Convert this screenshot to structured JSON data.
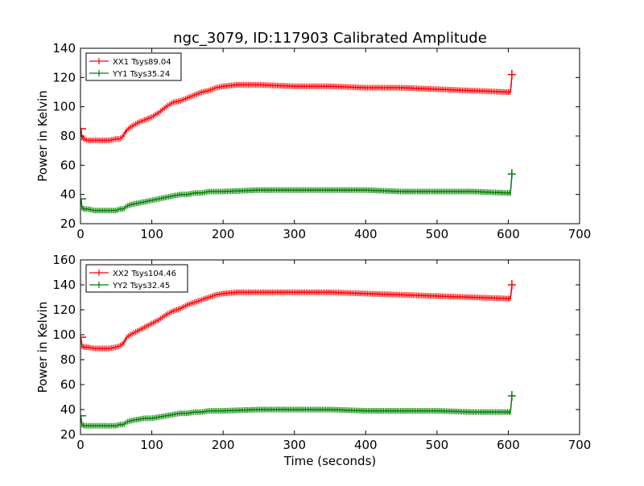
{
  "title": "ngc_3079, ID:117903 Calibrated Amplitude",
  "xlabel": "Time (seconds)",
  "colors": {
    "xx": "#ff0000",
    "yy": "#008000"
  },
  "chart_data": [
    {
      "type": "line",
      "ylabel": "Power in Kelvin",
      "xlim": [
        0,
        700
      ],
      "ylim": [
        20,
        140
      ],
      "xticks": [
        0,
        100,
        200,
        300,
        400,
        500,
        600,
        700
      ],
      "yticks": [
        20,
        40,
        60,
        80,
        100,
        120,
        140
      ],
      "legend_position": "top-left",
      "series": [
        {
          "name": "XX1 Tsys89.04",
          "color": "#ff0000",
          "points": [
            [
              0,
              85
            ],
            [
              1,
              84
            ],
            [
              2,
              79
            ],
            [
              5,
              78
            ],
            [
              10,
              77
            ],
            [
              20,
              77
            ],
            [
              30,
              77
            ],
            [
              40,
              77
            ],
            [
              50,
              78
            ],
            [
              55,
              78
            ],
            [
              60,
              80
            ],
            [
              62,
              82
            ],
            [
              65,
              84
            ],
            [
              70,
              86
            ],
            [
              80,
              89
            ],
            [
              90,
              91
            ],
            [
              100,
              93
            ],
            [
              110,
              96
            ],
            [
              120,
              100
            ],
            [
              130,
              103
            ],
            [
              140,
              104
            ],
            [
              150,
              106
            ],
            [
              160,
              108
            ],
            [
              170,
              110
            ],
            [
              180,
              111
            ],
            [
              190,
              113
            ],
            [
              200,
              114
            ],
            [
              220,
              115
            ],
            [
              250,
              115
            ],
            [
              300,
              114
            ],
            [
              350,
              114
            ],
            [
              400,
              113
            ],
            [
              450,
              113
            ],
            [
              500,
              112
            ],
            [
              550,
              111
            ],
            [
              600,
              110
            ],
            [
              603,
              110
            ],
            [
              604,
              115
            ],
            [
              605,
              122
            ]
          ]
        },
        {
          "name": "YY1 Tsys35.24",
          "color": "#008000",
          "points": [
            [
              0,
              37
            ],
            [
              1,
              36
            ],
            [
              2,
              31
            ],
            [
              5,
              30
            ],
            [
              10,
              30
            ],
            [
              20,
              29
            ],
            [
              30,
              29
            ],
            [
              40,
              29
            ],
            [
              50,
              29
            ],
            [
              55,
              30
            ],
            [
              60,
              30
            ],
            [
              65,
              32
            ],
            [
              70,
              33
            ],
            [
              80,
              34
            ],
            [
              90,
              35
            ],
            [
              100,
              36
            ],
            [
              110,
              37
            ],
            [
              120,
              38
            ],
            [
              130,
              39
            ],
            [
              140,
              40
            ],
            [
              150,
              40
            ],
            [
              160,
              41
            ],
            [
              170,
              41
            ],
            [
              180,
              42
            ],
            [
              190,
              42
            ],
            [
              200,
              42
            ],
            [
              250,
              43
            ],
            [
              300,
              43
            ],
            [
              350,
              43
            ],
            [
              400,
              43
            ],
            [
              450,
              42
            ],
            [
              500,
              42
            ],
            [
              550,
              42
            ],
            [
              600,
              41
            ],
            [
              603,
              41
            ],
            [
              604,
              47
            ],
            [
              605,
              54
            ]
          ]
        }
      ]
    },
    {
      "type": "line",
      "ylabel": "Power in Kelvin",
      "xlabel": "Time (seconds)",
      "xlim": [
        0,
        700
      ],
      "ylim": [
        20,
        160
      ],
      "xticks": [
        0,
        100,
        200,
        300,
        400,
        500,
        600,
        700
      ],
      "yticks": [
        20,
        40,
        60,
        80,
        100,
        120,
        140,
        160
      ],
      "legend_position": "top-left",
      "series": [
        {
          "name": "XX2 Tsys104.46",
          "color": "#ff0000",
          "points": [
            [
              0,
              98
            ],
            [
              1,
              96
            ],
            [
              2,
              91
            ],
            [
              5,
              90
            ],
            [
              10,
              90
            ],
            [
              20,
              89
            ],
            [
              30,
              89
            ],
            [
              40,
              89
            ],
            [
              50,
              90
            ],
            [
              55,
              91
            ],
            [
              60,
              93
            ],
            [
              62,
              95
            ],
            [
              65,
              98
            ],
            [
              70,
              100
            ],
            [
              80,
              103
            ],
            [
              90,
              106
            ],
            [
              100,
              109
            ],
            [
              110,
              112
            ],
            [
              120,
              116
            ],
            [
              130,
              119
            ],
            [
              140,
              121
            ],
            [
              150,
              124
            ],
            [
              160,
              126
            ],
            [
              170,
              128
            ],
            [
              180,
              130
            ],
            [
              190,
              132
            ],
            [
              200,
              133
            ],
            [
              220,
              134
            ],
            [
              250,
              134
            ],
            [
              300,
              134
            ],
            [
              350,
              134
            ],
            [
              400,
              133
            ],
            [
              450,
              132
            ],
            [
              500,
              131
            ],
            [
              550,
              130
            ],
            [
              600,
              129
            ],
            [
              603,
              129
            ],
            [
              604,
              134
            ],
            [
              605,
              140
            ]
          ]
        },
        {
          "name": "YY2 Tsys32.45",
          "color": "#008000",
          "points": [
            [
              0,
              35
            ],
            [
              1,
              33
            ],
            [
              2,
              28
            ],
            [
              5,
              27
            ],
            [
              10,
              27
            ],
            [
              20,
              27
            ],
            [
              30,
              27
            ],
            [
              40,
              27
            ],
            [
              50,
              27
            ],
            [
              55,
              28
            ],
            [
              60,
              28
            ],
            [
              65,
              30
            ],
            [
              70,
              31
            ],
            [
              80,
              32
            ],
            [
              90,
              33
            ],
            [
              100,
              33
            ],
            [
              110,
              34
            ],
            [
              120,
              35
            ],
            [
              130,
              36
            ],
            [
              140,
              37
            ],
            [
              150,
              37
            ],
            [
              160,
              38
            ],
            [
              170,
              38
            ],
            [
              180,
              39
            ],
            [
              190,
              39
            ],
            [
              200,
              39
            ],
            [
              250,
              40
            ],
            [
              300,
              40
            ],
            [
              350,
              40
            ],
            [
              400,
              39
            ],
            [
              450,
              39
            ],
            [
              500,
              39
            ],
            [
              550,
              38
            ],
            [
              600,
              38
            ],
            [
              603,
              38
            ],
            [
              604,
              44
            ],
            [
              605,
              51
            ]
          ]
        }
      ]
    }
  ]
}
